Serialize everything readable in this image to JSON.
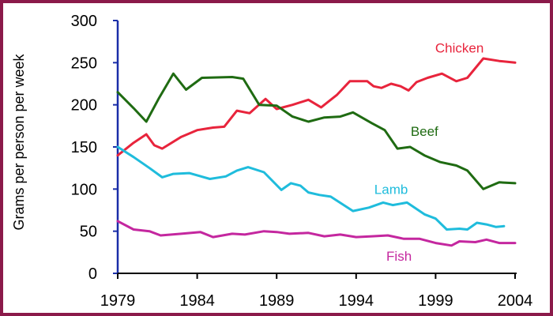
{
  "chart_data": {
    "type": "line",
    "ylabel": "Grams per person per week",
    "xlabel": "",
    "xlim": [
      1979,
      2004
    ],
    "ylim": [
      0,
      300
    ],
    "x_ticks": [
      1979,
      1984,
      1989,
      1994,
      1999,
      2004
    ],
    "y_ticks": [
      0,
      50,
      100,
      150,
      200,
      250,
      300
    ],
    "grid": false,
    "legend": "inline labels",
    "series": [
      {
        "name": "Chicken",
        "color": "#e8243c",
        "label_at": [
          2000.5,
          262
        ],
        "points": [
          [
            1979,
            140
          ],
          [
            1980,
            155
          ],
          [
            1980.8,
            165
          ],
          [
            1981.3,
            152
          ],
          [
            1981.8,
            148
          ],
          [
            1983,
            162
          ],
          [
            1984,
            170
          ],
          [
            1985,
            173
          ],
          [
            1985.7,
            174
          ],
          [
            1986.5,
            193
          ],
          [
            1987.3,
            190
          ],
          [
            1988.3,
            207
          ],
          [
            1989,
            195
          ],
          [
            1990,
            200
          ],
          [
            1991,
            206
          ],
          [
            1991.8,
            197
          ],
          [
            1992.8,
            212
          ],
          [
            1993.6,
            228
          ],
          [
            1994.7,
            228
          ],
          [
            1995.1,
            222
          ],
          [
            1995.6,
            220
          ],
          [
            1996.2,
            225
          ],
          [
            1996.8,
            222
          ],
          [
            1997.3,
            217
          ],
          [
            1997.8,
            227
          ],
          [
            1998.5,
            232
          ],
          [
            1999.4,
            237
          ],
          [
            2000.3,
            228
          ],
          [
            2001,
            232
          ],
          [
            2002,
            255
          ],
          [
            2003,
            252
          ],
          [
            2004,
            250
          ]
        ]
      },
      {
        "name": "Beef",
        "color": "#1f6b12",
        "label_at": [
          1998.3,
          163
        ],
        "points": [
          [
            1979,
            215
          ],
          [
            1980,
            196
          ],
          [
            1980.8,
            180
          ],
          [
            1981.6,
            208
          ],
          [
            1982.5,
            237
          ],
          [
            1983.3,
            218
          ],
          [
            1984.3,
            232
          ],
          [
            1986.2,
            233
          ],
          [
            1986.9,
            231
          ],
          [
            1987.9,
            200
          ],
          [
            1989,
            199
          ],
          [
            1990,
            186
          ],
          [
            1991,
            180
          ],
          [
            1992,
            185
          ],
          [
            1993,
            186
          ],
          [
            1993.8,
            191
          ],
          [
            1995,
            178
          ],
          [
            1995.8,
            170
          ],
          [
            1996.6,
            148
          ],
          [
            1997.4,
            150
          ],
          [
            1998.3,
            140
          ],
          [
            1999.3,
            132
          ],
          [
            2000.3,
            128
          ],
          [
            2001,
            122
          ],
          [
            2002,
            100
          ],
          [
            2003,
            108
          ],
          [
            2004,
            107
          ]
        ]
      },
      {
        "name": "Lamb",
        "color": "#1fbcdc",
        "label_at": [
          1996.2,
          94
        ],
        "points": [
          [
            1979,
            150
          ],
          [
            1980,
            138
          ],
          [
            1981,
            125
          ],
          [
            1981.8,
            114
          ],
          [
            1982.5,
            118
          ],
          [
            1983.5,
            119
          ],
          [
            1984.8,
            112
          ],
          [
            1985.8,
            115
          ],
          [
            1986.5,
            122
          ],
          [
            1987.2,
            126
          ],
          [
            1988.2,
            120
          ],
          [
            1989.3,
            99
          ],
          [
            1989.9,
            107
          ],
          [
            1990.5,
            104
          ],
          [
            1991,
            96
          ],
          [
            1991.7,
            93
          ],
          [
            1992.4,
            91
          ],
          [
            1993.8,
            74
          ],
          [
            1994.8,
            78
          ],
          [
            1995.7,
            84
          ],
          [
            1996.3,
            81
          ],
          [
            1997.2,
            84
          ],
          [
            1998.3,
            70
          ],
          [
            1999,
            65
          ],
          [
            1999.7,
            52
          ],
          [
            2000.5,
            53
          ],
          [
            2001,
            52
          ],
          [
            2001.6,
            60
          ],
          [
            2002.2,
            58
          ],
          [
            2002.8,
            55
          ],
          [
            2003.3,
            56
          ]
        ]
      },
      {
        "name": "Fish",
        "color": "#c4279f",
        "label_at": [
          1996.7,
          15
        ],
        "points": [
          [
            1979,
            62
          ],
          [
            1980,
            52
          ],
          [
            1981,
            50
          ],
          [
            1981.7,
            45
          ],
          [
            1983,
            47
          ],
          [
            1984.2,
            49
          ],
          [
            1985,
            43
          ],
          [
            1986.2,
            47
          ],
          [
            1987,
            46
          ],
          [
            1988.2,
            50
          ],
          [
            1989,
            49
          ],
          [
            1989.8,
            47
          ],
          [
            1991,
            48
          ],
          [
            1992,
            44
          ],
          [
            1993,
            46
          ],
          [
            1994,
            43
          ],
          [
            1995,
            44
          ],
          [
            1996,
            45
          ],
          [
            1997,
            41
          ],
          [
            1998,
            41
          ],
          [
            1999,
            36
          ],
          [
            2000,
            33
          ],
          [
            2000.5,
            38
          ],
          [
            2001.5,
            37
          ],
          [
            2002.2,
            40
          ],
          [
            2003,
            36
          ],
          [
            2004,
            36
          ]
        ]
      }
    ]
  }
}
